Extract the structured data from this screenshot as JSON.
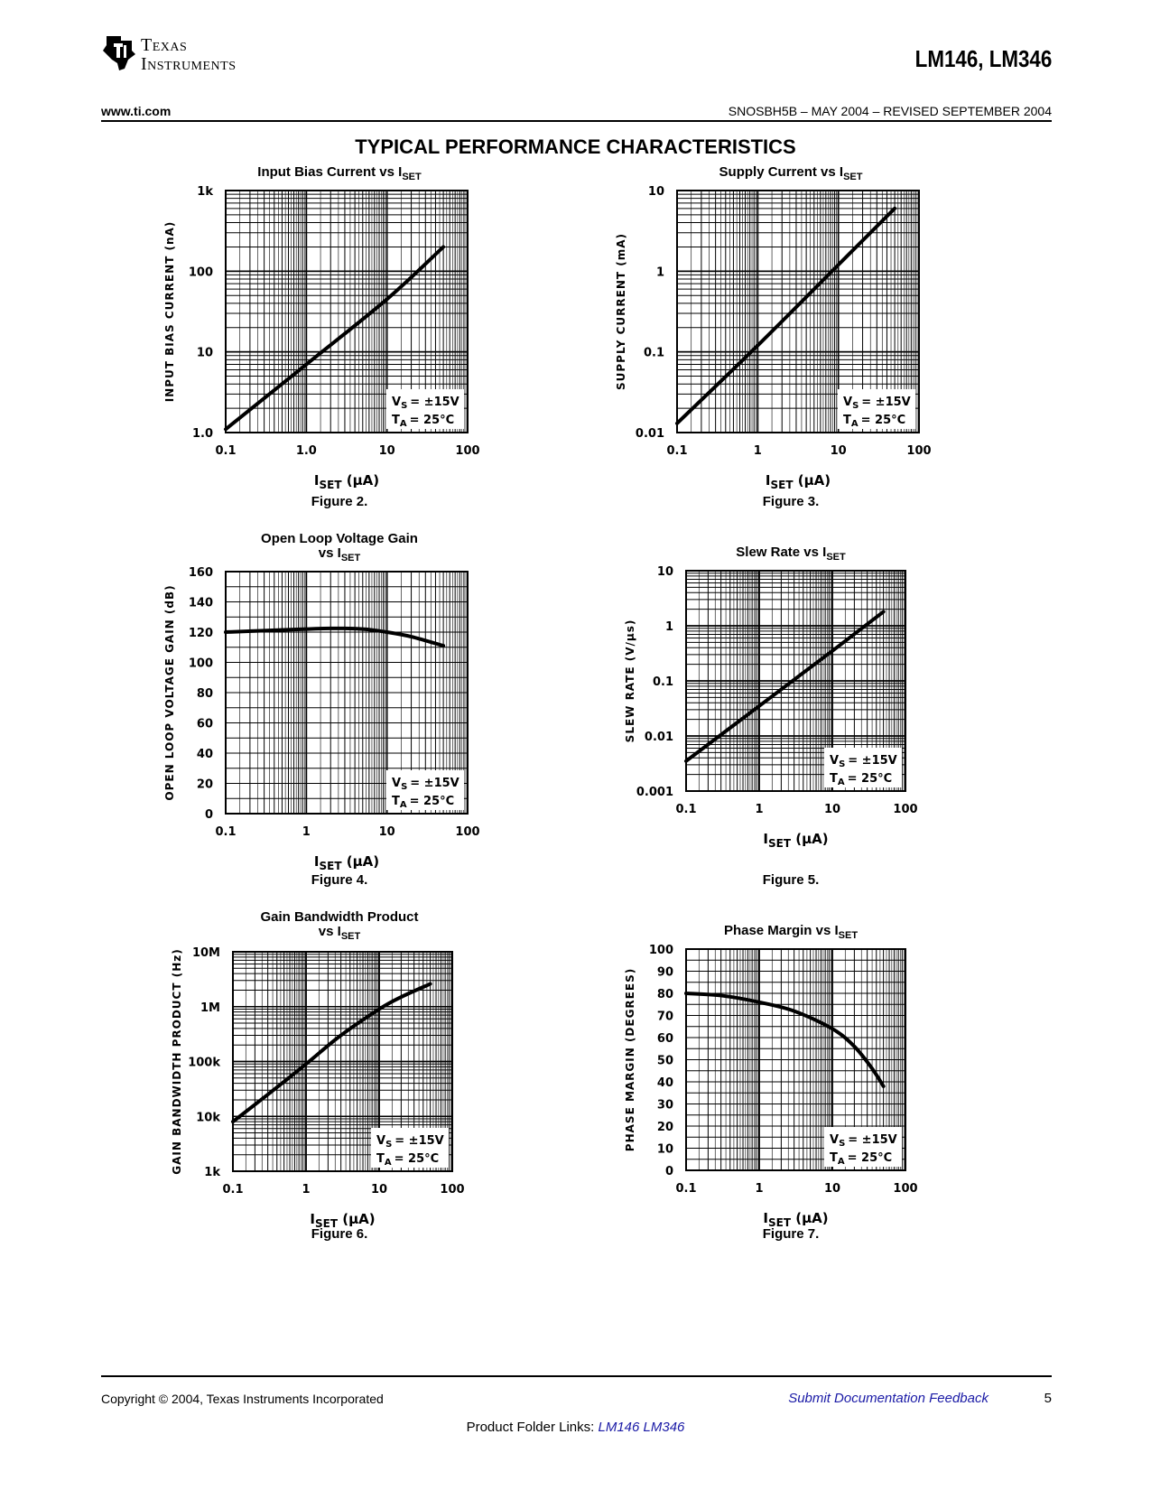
{
  "header": {
    "company_line1": "Texas",
    "company_line2": "Instruments",
    "part_number": "LM146, LM346",
    "website": "www.ti.com",
    "doc_id": "SNOSBH5B – MAY 2004 – REVISED SEPTEMBER 2004"
  },
  "section_title": "TYPICAL PERFORMANCE CHARACTERISTICS",
  "footer": {
    "copyright": "Copyright © 2004, Texas Instruments Incorporated",
    "feedback_link": "Submit Documentation Feedback",
    "page_number": "5",
    "folder_label": "Product Folder Links:",
    "folder_link_1": "LM146",
    "folder_link_2": "LM346"
  },
  "colors": {
    "text": "#000000",
    "link": "#1a1aa6"
  },
  "chart_data": [
    {
      "id": "fig2",
      "type": "line",
      "title": "Input Bias Current vs I",
      "title_sub": "SET",
      "figure_label": "Figure 2.",
      "xlabel": "I",
      "xlabel_sub": "SET",
      "xlabel_unit": " (μA)",
      "ylabel": "INPUT BIAS CURRENT (nA)",
      "xscale": "log",
      "yscale": "log",
      "xlim": [
        0.1,
        100
      ],
      "ylim": [
        1,
        1000
      ],
      "xticks": [
        {
          "v": 0.1,
          "label": "0.1"
        },
        {
          "v": 1,
          "label": "1.0"
        },
        {
          "v": 10,
          "label": "10"
        },
        {
          "v": 100,
          "label": "100"
        }
      ],
      "yticks": [
        {
          "v": 1,
          "label": "1.0"
        },
        {
          "v": 10,
          "label": "10"
        },
        {
          "v": 100,
          "label": "100"
        },
        {
          "v": 1000,
          "label": "1k"
        }
      ],
      "annotation_vs": "= ±15V",
      "annotation_ta": "= 25°C",
      "series": [
        {
          "x": [
            0.1,
            1,
            10,
            50
          ],
          "y": [
            1.1,
            7,
            45,
            200
          ]
        }
      ]
    },
    {
      "id": "fig3",
      "type": "line",
      "title": "Supply Current vs I",
      "title_sub": "SET",
      "figure_label": "Figure 3.",
      "xlabel": "I",
      "xlabel_sub": "SET",
      "xlabel_unit": " (μA)",
      "ylabel": "SUPPLY CURRENT (mA)",
      "xscale": "log",
      "yscale": "log",
      "xlim": [
        0.1,
        100
      ],
      "ylim": [
        0.01,
        10
      ],
      "xticks": [
        {
          "v": 0.1,
          "label": "0.1"
        },
        {
          "v": 1,
          "label": "1"
        },
        {
          "v": 10,
          "label": "10"
        },
        {
          "v": 100,
          "label": "100"
        }
      ],
      "yticks": [
        {
          "v": 0.01,
          "label": "0.01"
        },
        {
          "v": 0.1,
          "label": "0.1"
        },
        {
          "v": 1,
          "label": "1"
        },
        {
          "v": 10,
          "label": "10"
        }
      ],
      "annotation_vs": "= ±15V",
      "annotation_ta": "= 25°C",
      "series": [
        {
          "x": [
            0.1,
            1,
            10,
            50
          ],
          "y": [
            0.013,
            0.12,
            1.2,
            6
          ]
        }
      ]
    },
    {
      "id": "fig4",
      "type": "line",
      "title": "Open Loop Voltage Gain",
      "title_line2": "vs I",
      "title_sub": "SET",
      "figure_label": "Figure 4.",
      "xlabel": "I",
      "xlabel_sub": "SET",
      "xlabel_unit": " (μA)",
      "ylabel": "OPEN LOOP VOLTAGE GAIN (dB)",
      "xscale": "log",
      "yscale": "linear",
      "xlim": [
        0.1,
        100
      ],
      "ylim": [
        0,
        160
      ],
      "xticks": [
        {
          "v": 0.1,
          "label": "0.1"
        },
        {
          "v": 1,
          "label": "1"
        },
        {
          "v": 10,
          "label": "10"
        },
        {
          "v": 100,
          "label": "100"
        }
      ],
      "yticks": [
        {
          "v": 0,
          "label": "0"
        },
        {
          "v": 20,
          "label": "20"
        },
        {
          "v": 40,
          "label": "40"
        },
        {
          "v": 60,
          "label": "60"
        },
        {
          "v": 80,
          "label": "80"
        },
        {
          "v": 100,
          "label": "100"
        },
        {
          "v": 120,
          "label": "120"
        },
        {
          "v": 140,
          "label": "140"
        },
        {
          "v": 160,
          "label": "160"
        }
      ],
      "annotation_vs": "= ±15V",
      "annotation_ta": "= 25°C",
      "series": [
        {
          "x": [
            0.1,
            0.3,
            1,
            2,
            5,
            10,
            20,
            50
          ],
          "y": [
            120,
            121,
            122,
            122.5,
            122,
            120,
            117,
            111
          ]
        }
      ]
    },
    {
      "id": "fig5",
      "type": "line",
      "title": "Slew Rate vs I",
      "title_sub": "SET",
      "figure_label": "Figure 5.",
      "xlabel": "I",
      "xlabel_sub": "SET",
      "xlabel_unit": " (μA)",
      "ylabel": "SLEW RATE (V/μs)",
      "xscale": "log",
      "yscale": "log",
      "xlim": [
        0.1,
        100
      ],
      "ylim": [
        0.001,
        10
      ],
      "xticks": [
        {
          "v": 0.1,
          "label": "0.1"
        },
        {
          "v": 1,
          "label": "1"
        },
        {
          "v": 10,
          "label": "10"
        },
        {
          "v": 100,
          "label": "100"
        }
      ],
      "yticks": [
        {
          "v": 0.001,
          "label": "0.001"
        },
        {
          "v": 0.01,
          "label": "0.01"
        },
        {
          "v": 0.1,
          "label": "0.1"
        },
        {
          "v": 1,
          "label": "1"
        },
        {
          "v": 10,
          "label": "10"
        }
      ],
      "annotation_vs": "= ±15V",
      "annotation_ta": "= 25°C",
      "series": [
        {
          "x": [
            0.1,
            1,
            10,
            50
          ],
          "y": [
            0.0035,
            0.035,
            0.35,
            1.8
          ]
        }
      ]
    },
    {
      "id": "fig6",
      "type": "line",
      "title": "Gain Bandwidth Product",
      "title_line2": "vs I",
      "title_sub": "SET",
      "figure_label": "Figure 6.",
      "xlabel": "I",
      "xlabel_sub": "SET",
      "xlabel_unit": " (μA)",
      "ylabel": "GAIN BANDWIDTH PRODUCT (Hz)",
      "xscale": "log",
      "yscale": "log",
      "xlim": [
        0.1,
        100
      ],
      "ylim": [
        1000,
        10000000
      ],
      "xticks": [
        {
          "v": 0.1,
          "label": "0.1"
        },
        {
          "v": 1,
          "label": "1"
        },
        {
          "v": 10,
          "label": "10"
        },
        {
          "v": 100,
          "label": "100"
        }
      ],
      "yticks": [
        {
          "v": 1000,
          "label": "1k"
        },
        {
          "v": 10000,
          "label": "10k"
        },
        {
          "v": 100000,
          "label": "100k"
        },
        {
          "v": 1000000,
          "label": "1M"
        },
        {
          "v": 10000000,
          "label": "10M"
        }
      ],
      "annotation_vs": "= ±15V",
      "annotation_ta": "= 25°C",
      "series": [
        {
          "x": [
            0.1,
            0.3,
            1,
            3,
            10,
            20,
            50
          ],
          "y": [
            8000,
            25000,
            90000,
            300000,
            900000,
            1500000,
            2600000
          ]
        }
      ]
    },
    {
      "id": "fig7",
      "type": "line",
      "title": "Phase Margin vs I",
      "title_sub": "SET",
      "figure_label": "Figure 7.",
      "xlabel": "I",
      "xlabel_sub": "SET",
      "xlabel_unit": " (μA)",
      "ylabel": "PHASE MARGIN (DEGREES)",
      "xscale": "log",
      "yscale": "linear",
      "xlim": [
        0.1,
        100
      ],
      "ylim": [
        0,
        100
      ],
      "xticks": [
        {
          "v": 0.1,
          "label": "0.1"
        },
        {
          "v": 1,
          "label": "1"
        },
        {
          "v": 10,
          "label": "10"
        },
        {
          "v": 100,
          "label": "100"
        }
      ],
      "yticks": [
        {
          "v": 0,
          "label": "0"
        },
        {
          "v": 10,
          "label": "10"
        },
        {
          "v": 20,
          "label": "20"
        },
        {
          "v": 30,
          "label": "30"
        },
        {
          "v": 40,
          "label": "40"
        },
        {
          "v": 50,
          "label": "50"
        },
        {
          "v": 60,
          "label": "60"
        },
        {
          "v": 70,
          "label": "70"
        },
        {
          "v": 80,
          "label": "80"
        },
        {
          "v": 90,
          "label": "90"
        },
        {
          "v": 100,
          "label": "100"
        }
      ],
      "annotation_vs": "= ±15V",
      "annotation_ta": "= 25°C",
      "series": [
        {
          "x": [
            0.1,
            0.3,
            1,
            3,
            10,
            20,
            35,
            50
          ],
          "y": [
            80,
            79,
            76,
            72,
            64,
            56,
            46,
            38
          ]
        }
      ]
    }
  ]
}
